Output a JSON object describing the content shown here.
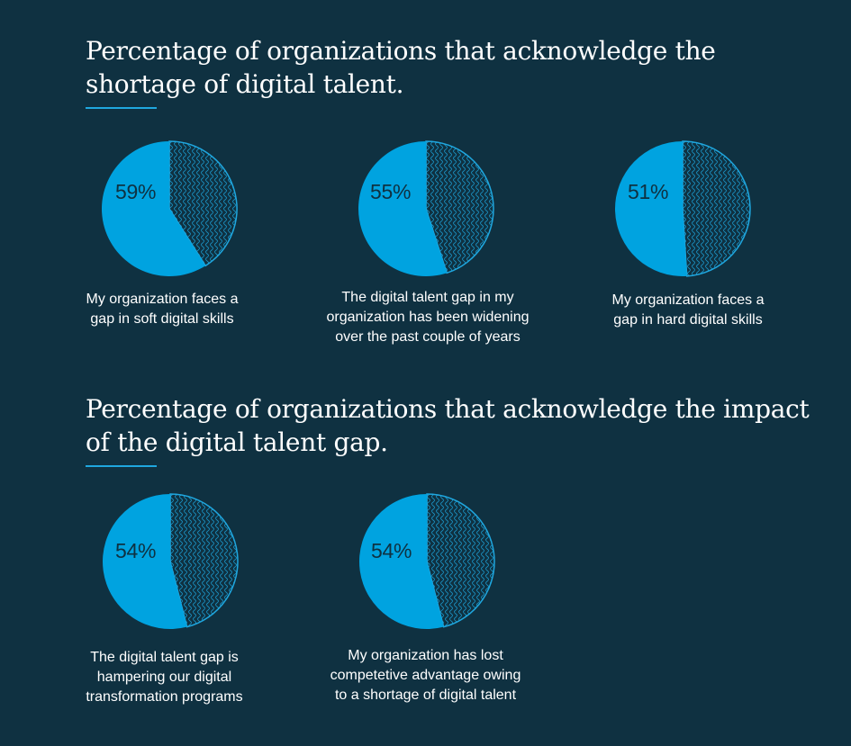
{
  "colors": {
    "background": "#0f3141",
    "accent": "#00a3e0",
    "stroke": "#1fa7df",
    "text": "#ffffff"
  },
  "sections": [
    {
      "title": "Percentage of organizations that acknowledge the\nshortage of digital talent."
    },
    {
      "title": "Percentage of organizations that acknowledge the impact\nof the digital talent gap."
    }
  ],
  "chart_data": [
    {
      "type": "pie",
      "value": 59,
      "label": "59%",
      "caption": "My organization faces a\ngap in soft digital skills"
    },
    {
      "type": "pie",
      "value": 55,
      "label": "55%",
      "caption": "The digital talent gap in my\norganization has been widening\nover the past couple of years"
    },
    {
      "type": "pie",
      "value": 51,
      "label": "51%",
      "caption": "My organization faces a\ngap in hard digital skills"
    },
    {
      "type": "pie",
      "value": 54,
      "label": "54%",
      "caption": "The digital talent gap is\nhampering our digital\ntransformation programs"
    },
    {
      "type": "pie",
      "value": 54,
      "label": "54%",
      "caption": "My organization has lost\ncompetetive advantage owing\nto a shortage of digital talent"
    }
  ]
}
